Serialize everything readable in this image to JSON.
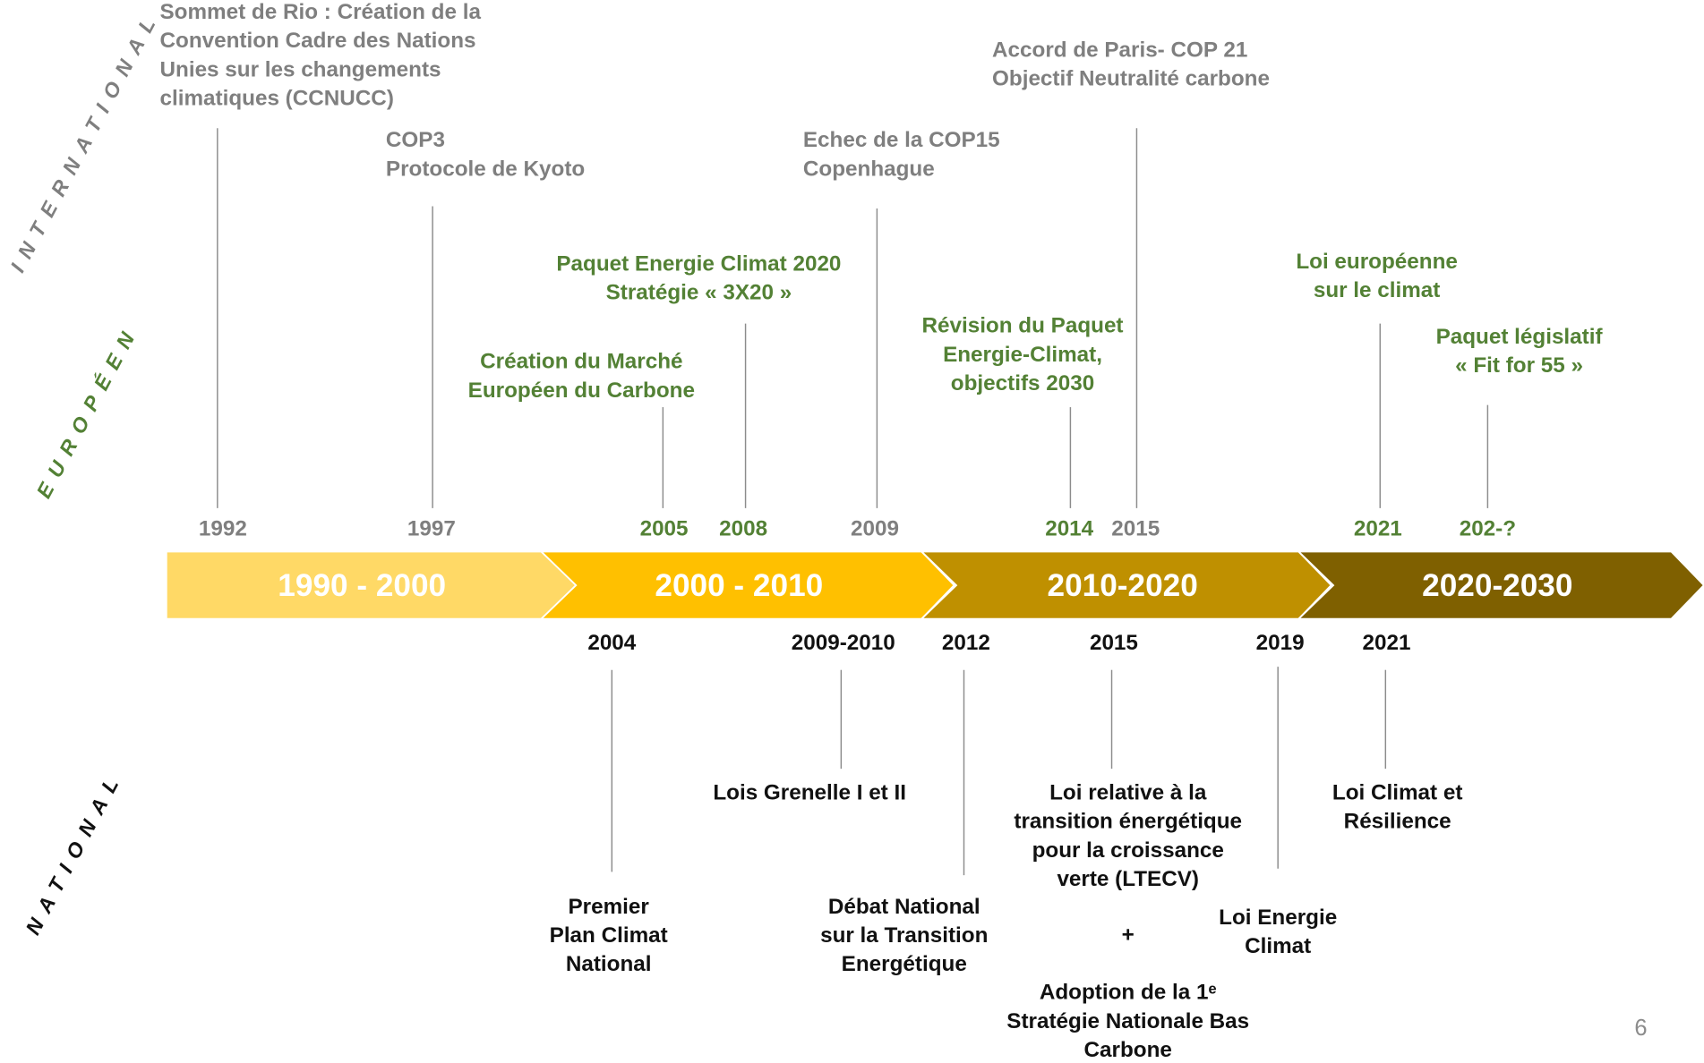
{
  "side_labels": [
    "INTERNATIONAL",
    "EUROPÉEN",
    "NATIONAL"
  ],
  "periods": [
    "1990 - 2000",
    "2000 - 2010",
    "2010-2020",
    "2020-2030"
  ],
  "international": [
    {
      "year": "1992",
      "lines": [
        "Sommet de Rio : Création de la",
        "Convention Cadre des Nations",
        "Unies sur les changements",
        "climatiques (CCNUCC)"
      ]
    },
    {
      "year": "1997",
      "lines": [
        "COP3",
        "Protocole de Kyoto"
      ]
    },
    {
      "year": "2009",
      "lines": [
        "Echec de la COP15",
        "Copenhague"
      ]
    },
    {
      "year": "2015",
      "lines": [
        "Accord de Paris- COP 21",
        "Objectif Neutralité carbone"
      ]
    }
  ],
  "european": [
    {
      "year": "2005",
      "lines": [
        "Création du Marché",
        "Européen du Carbone"
      ]
    },
    {
      "year": "2008",
      "lines": [
        "Paquet Energie Climat 2020",
        "Stratégie « 3X20 »"
      ]
    },
    {
      "year": "2014",
      "lines": [
        "Révision du Paquet",
        "Energie-Climat,",
        "objectifs 2030"
      ]
    },
    {
      "year": "2021",
      "lines": [
        "Loi européenne",
        "sur le climat"
      ]
    },
    {
      "year": "202-?",
      "lines": [
        "Paquet législatif",
        "« Fit for 55 »"
      ]
    }
  ],
  "national": [
    {
      "year": "2004",
      "lines": [
        "Premier",
        "Plan Climat",
        "National"
      ]
    },
    {
      "year": "2009-2010",
      "lines": [
        "Lois Grenelle I et II"
      ]
    },
    {
      "year": "2012",
      "lines": [
        "Débat National",
        "sur la Transition",
        "Energétique"
      ]
    },
    {
      "year": "2015",
      "lines": [
        "Loi relative à la",
        "transition énergétique",
        "pour la croissance",
        "verte (LTECV)"
      ],
      "plus": "+",
      "extra_lines": [
        "Adoption de la 1ᵉ",
        "Stratégie Nationale Bas",
        "Carbone"
      ]
    },
    {
      "year": "2019",
      "lines": [
        "Loi Energie",
        "Climat"
      ]
    },
    {
      "year": "2021",
      "lines": [
        "Loi Climat et",
        "Résilience"
      ]
    }
  ],
  "page_number": "6"
}
